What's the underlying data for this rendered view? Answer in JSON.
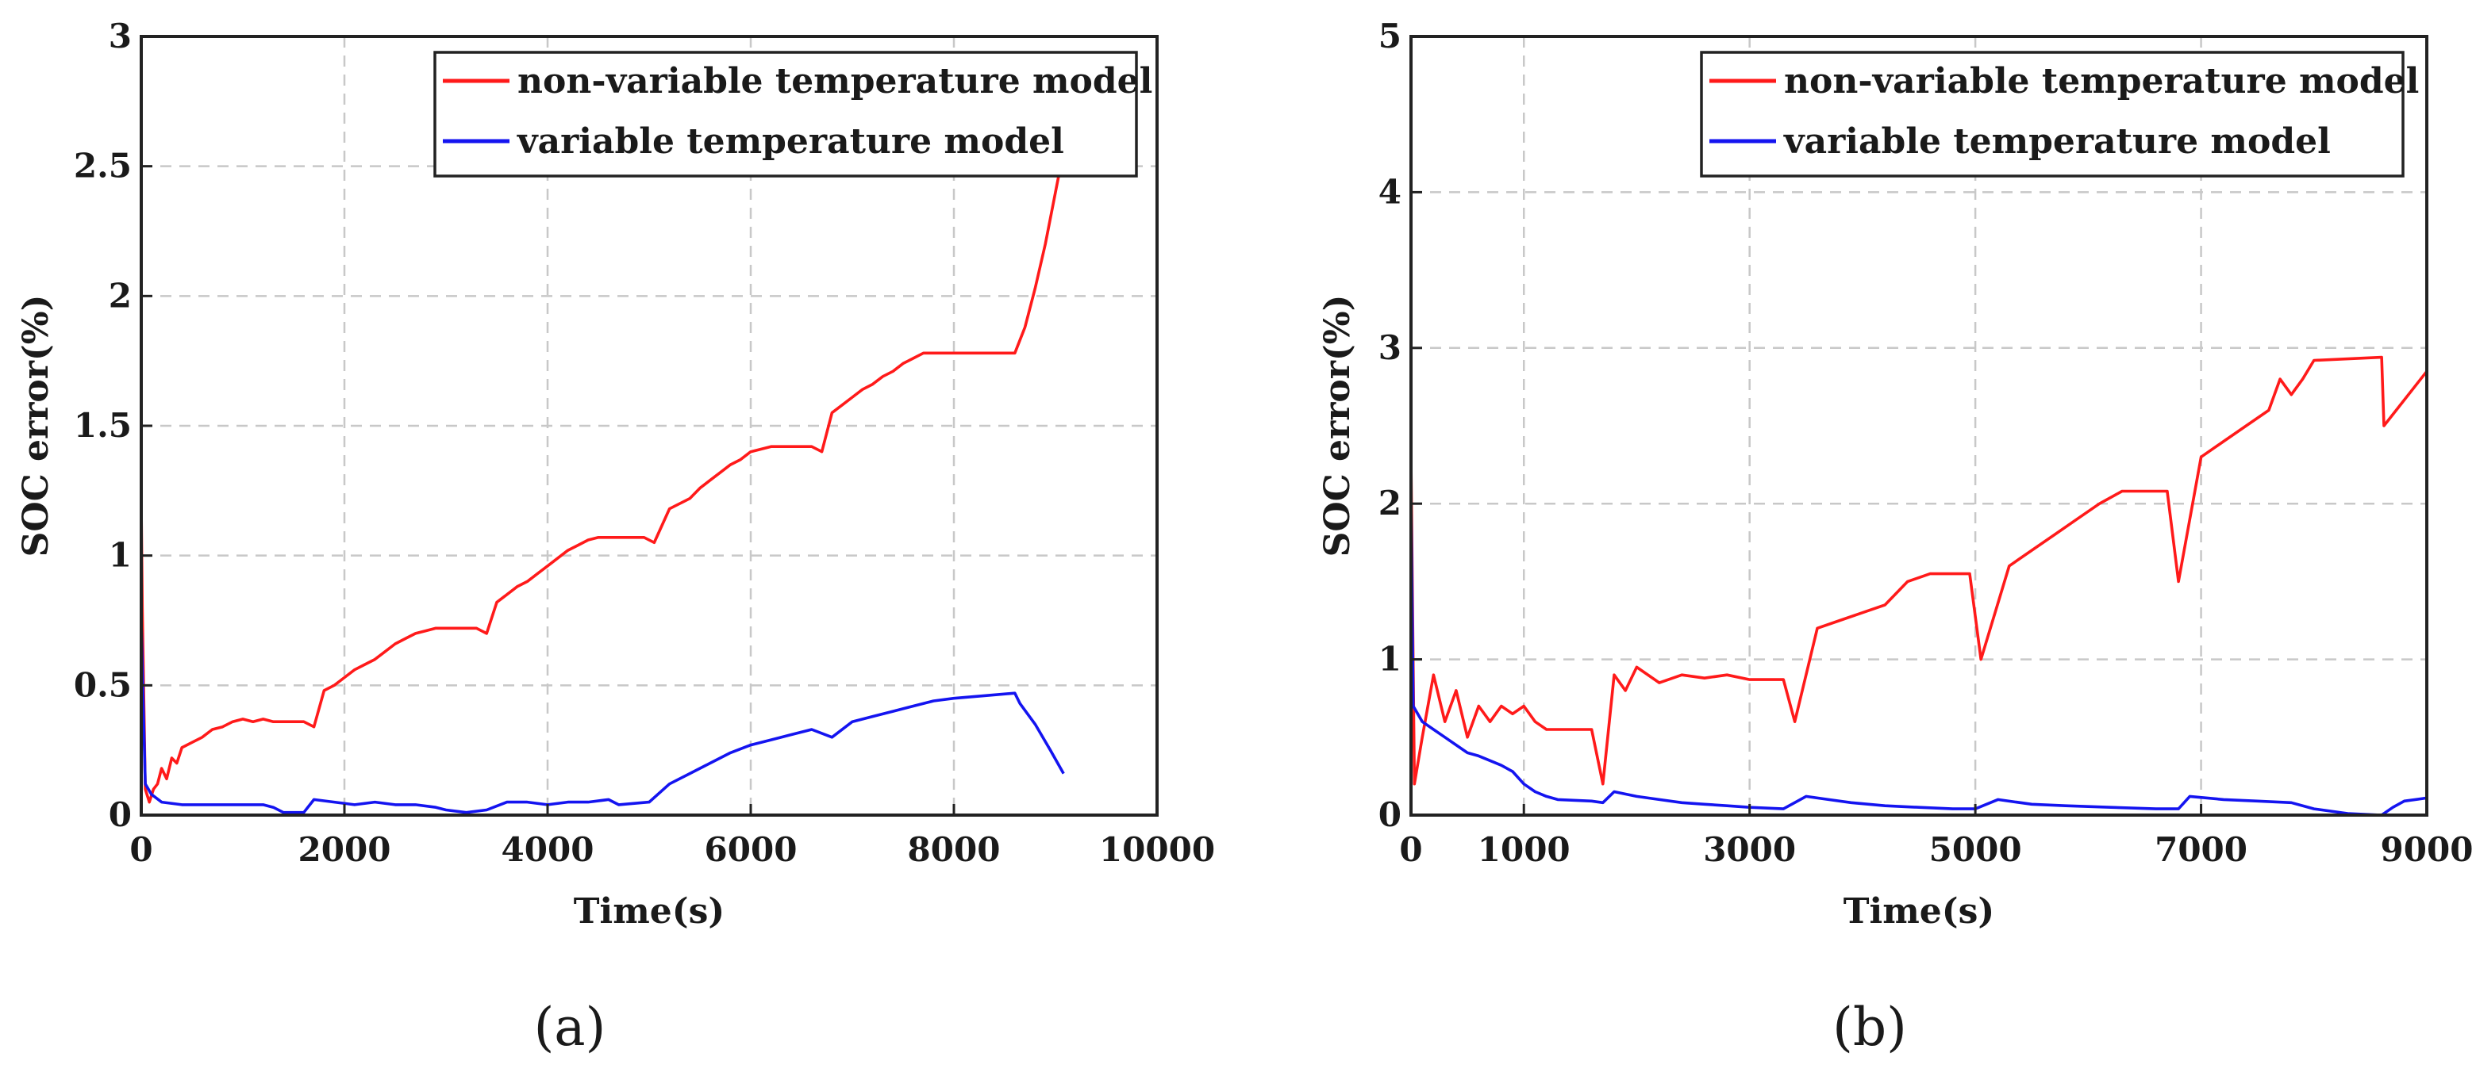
{
  "figure": {
    "panel_labels": [
      "(a)",
      "(b)"
    ]
  },
  "chart_data": [
    {
      "panel": "(a)",
      "type": "line",
      "title": "",
      "xlabel": "Time(s)",
      "ylabel": "SOC error(%)",
      "xlim": [
        0,
        10000
      ],
      "ylim": [
        0,
        3
      ],
      "xticks": [
        0,
        2000,
        4000,
        6000,
        8000,
        10000
      ],
      "yticks": [
        0,
        0.5,
        1,
        1.5,
        2,
        2.5,
        3
      ],
      "ytick_labels": [
        "0",
        "0.5",
        "1",
        "1.5",
        "2",
        "2.5",
        "3"
      ],
      "grid": true,
      "legend_position": "top-right",
      "series": [
        {
          "name": "non-variable temperature model",
          "color": "#ff1a1a",
          "points": [
            [
              0,
              1.2
            ],
            [
              10,
              0.8
            ],
            [
              40,
              0.1
            ],
            [
              80,
              0.05
            ],
            [
              120,
              0.1
            ],
            [
              160,
              0.12
            ],
            [
              200,
              0.18
            ],
            [
              250,
              0.14
            ],
            [
              300,
              0.22
            ],
            [
              350,
              0.2
            ],
            [
              400,
              0.26
            ],
            [
              500,
              0.28
            ],
            [
              600,
              0.3
            ],
            [
              700,
              0.33
            ],
            [
              800,
              0.34
            ],
            [
              900,
              0.36
            ],
            [
              1000,
              0.37
            ],
            [
              1100,
              0.36
            ],
            [
              1200,
              0.37
            ],
            [
              1300,
              0.36
            ],
            [
              1400,
              0.36
            ],
            [
              1600,
              0.36
            ],
            [
              1700,
              0.34
            ],
            [
              1800,
              0.48
            ],
            [
              1900,
              0.5
            ],
            [
              2000,
              0.53
            ],
            [
              2100,
              0.56
            ],
            [
              2200,
              0.58
            ],
            [
              2300,
              0.6
            ],
            [
              2400,
              0.63
            ],
            [
              2500,
              0.66
            ],
            [
              2600,
              0.68
            ],
            [
              2700,
              0.7
            ],
            [
              2800,
              0.71
            ],
            [
              2900,
              0.72
            ],
            [
              3000,
              0.72
            ],
            [
              3300,
              0.72
            ],
            [
              3400,
              0.7
            ],
            [
              3500,
              0.82
            ],
            [
              3600,
              0.85
            ],
            [
              3700,
              0.88
            ],
            [
              3800,
              0.9
            ],
            [
              3900,
              0.93
            ],
            [
              4000,
              0.96
            ],
            [
              4100,
              0.99
            ],
            [
              4200,
              1.02
            ],
            [
              4300,
              1.04
            ],
            [
              4400,
              1.06
            ],
            [
              4500,
              1.07
            ],
            [
              4600,
              1.07
            ],
            [
              4950,
              1.07
            ],
            [
              5050,
              1.05
            ],
            [
              5200,
              1.18
            ],
            [
              5300,
              1.2
            ],
            [
              5400,
              1.22
            ],
            [
              5500,
              1.26
            ],
            [
              5600,
              1.29
            ],
            [
              5700,
              1.32
            ],
            [
              5800,
              1.35
            ],
            [
              5900,
              1.37
            ],
            [
              6000,
              1.4
            ],
            [
              6100,
              1.41
            ],
            [
              6200,
              1.42
            ],
            [
              6300,
              1.42
            ],
            [
              6600,
              1.42
            ],
            [
              6700,
              1.4
            ],
            [
              6800,
              1.55
            ],
            [
              6900,
              1.58
            ],
            [
              7000,
              1.61
            ],
            [
              7100,
              1.64
            ],
            [
              7200,
              1.66
            ],
            [
              7300,
              1.69
            ],
            [
              7400,
              1.71
            ],
            [
              7500,
              1.74
            ],
            [
              7600,
              1.76
            ],
            [
              7700,
              1.78
            ],
            [
              7800,
              1.78
            ],
            [
              7900,
              1.78
            ],
            [
              8000,
              1.78
            ],
            [
              8300,
              1.78
            ],
            [
              8600,
              1.78
            ],
            [
              8700,
              1.88
            ],
            [
              8800,
              2.03
            ],
            [
              8900,
              2.2
            ],
            [
              9000,
              2.4
            ],
            [
              9050,
              2.5
            ]
          ]
        },
        {
          "name": "variable temperature model",
          "color": "#1414f0",
          "points": [
            [
              0,
              0.75
            ],
            [
              15,
              0.5
            ],
            [
              40,
              0.12
            ],
            [
              100,
              0.08
            ],
            [
              200,
              0.05
            ],
            [
              400,
              0.04
            ],
            [
              600,
              0.04
            ],
            [
              800,
              0.04
            ],
            [
              1000,
              0.04
            ],
            [
              1200,
              0.04
            ],
            [
              1300,
              0.03
            ],
            [
              1400,
              0.01
            ],
            [
              1600,
              0.01
            ],
            [
              1700,
              0.06
            ],
            [
              1900,
              0.05
            ],
            [
              2100,
              0.04
            ],
            [
              2300,
              0.05
            ],
            [
              2500,
              0.04
            ],
            [
              2700,
              0.04
            ],
            [
              2900,
              0.03
            ],
            [
              3000,
              0.02
            ],
            [
              3200,
              0.01
            ],
            [
              3400,
              0.02
            ],
            [
              3600,
              0.05
            ],
            [
              3800,
              0.05
            ],
            [
              4000,
              0.04
            ],
            [
              4200,
              0.05
            ],
            [
              4400,
              0.05
            ],
            [
              4600,
              0.06
            ],
            [
              4700,
              0.04
            ],
            [
              5000,
              0.05
            ],
            [
              5200,
              0.12
            ],
            [
              5400,
              0.16
            ],
            [
              5600,
              0.2
            ],
            [
              5800,
              0.24
            ],
            [
              6000,
              0.27
            ],
            [
              6200,
              0.29
            ],
            [
              6400,
              0.31
            ],
            [
              6600,
              0.33
            ],
            [
              6800,
              0.3
            ],
            [
              7000,
              0.36
            ],
            [
              7200,
              0.38
            ],
            [
              7400,
              0.4
            ],
            [
              7600,
              0.42
            ],
            [
              7800,
              0.44
            ],
            [
              8000,
              0.45
            ],
            [
              8300,
              0.46
            ],
            [
              8600,
              0.47
            ],
            [
              8650,
              0.43
            ],
            [
              8800,
              0.35
            ],
            [
              8950,
              0.25
            ],
            [
              9080,
              0.16
            ]
          ]
        }
      ]
    },
    {
      "panel": "(b)",
      "type": "line",
      "title": "",
      "xlabel": "Time(s)",
      "ylabel": "SOC error(%)",
      "xlim": [
        0,
        9000
      ],
      "ylim": [
        0,
        5
      ],
      "xticks": [
        0,
        1000,
        3000,
        5000,
        7000,
        9000
      ],
      "yticks": [
        0,
        1,
        2,
        3,
        4,
        5
      ],
      "ytick_labels": [
        "0",
        "1",
        "2",
        "3",
        "4",
        "5"
      ],
      "grid": true,
      "legend_position": "top-right",
      "series": [
        {
          "name": "non-variable temperature model",
          "color": "#ff1a1a",
          "points": [
            [
              0,
              2.3
            ],
            [
              30,
              0.2
            ],
            [
              100,
              0.5
            ],
            [
              200,
              0.9
            ],
            [
              300,
              0.6
            ],
            [
              400,
              0.8
            ],
            [
              500,
              0.5
            ],
            [
              600,
              0.7
            ],
            [
              700,
              0.6
            ],
            [
              800,
              0.7
            ],
            [
              900,
              0.65
            ],
            [
              1000,
              0.7
            ],
            [
              1100,
              0.6
            ],
            [
              1200,
              0.55
            ],
            [
              1300,
              0.55
            ],
            [
              1600,
              0.55
            ],
            [
              1700,
              0.2
            ],
            [
              1800,
              0.9
            ],
            [
              1900,
              0.8
            ],
            [
              2000,
              0.95
            ],
            [
              2200,
              0.85
            ],
            [
              2400,
              0.9
            ],
            [
              2600,
              0.88
            ],
            [
              2800,
              0.9
            ],
            [
              3000,
              0.87
            ],
            [
              3300,
              0.87
            ],
            [
              3400,
              0.6
            ],
            [
              3600,
              1.2
            ],
            [
              3800,
              1.25
            ],
            [
              4000,
              1.3
            ],
            [
              4200,
              1.35
            ],
            [
              4400,
              1.5
            ],
            [
              4600,
              1.55
            ],
            [
              4950,
              1.55
            ],
            [
              5050,
              1.0
            ],
            [
              5300,
              1.6
            ],
            [
              5500,
              1.7
            ],
            [
              5700,
              1.8
            ],
            [
              5900,
              1.9
            ],
            [
              6100,
              2.0
            ],
            [
              6300,
              2.08
            ],
            [
              6700,
              2.08
            ],
            [
              6800,
              1.5
            ],
            [
              7000,
              2.3
            ],
            [
              7200,
              2.4
            ],
            [
              7400,
              2.5
            ],
            [
              7600,
              2.6
            ],
            [
              7700,
              2.8
            ],
            [
              7800,
              2.7
            ],
            [
              7900,
              2.8
            ],
            [
              8000,
              2.92
            ],
            [
              8600,
              2.94
            ],
            [
              8620,
              2.5
            ],
            [
              9000,
              2.85
            ]
          ]
        },
        {
          "name": "variable temperature model",
          "color": "#1414f0",
          "points": [
            [
              0,
              2.05
            ],
            [
              20,
              0.7
            ],
            [
              100,
              0.6
            ],
            [
              200,
              0.55
            ],
            [
              300,
              0.5
            ],
            [
              400,
              0.45
            ],
            [
              500,
              0.4
            ],
            [
              600,
              0.38
            ],
            [
              700,
              0.35
            ],
            [
              800,
              0.32
            ],
            [
              900,
              0.28
            ],
            [
              1000,
              0.2
            ],
            [
              1100,
              0.15
            ],
            [
              1200,
              0.12
            ],
            [
              1300,
              0.1
            ],
            [
              1600,
              0.09
            ],
            [
              1700,
              0.08
            ],
            [
              1800,
              0.15
            ],
            [
              2000,
              0.12
            ],
            [
              2200,
              0.1
            ],
            [
              2400,
              0.08
            ],
            [
              2600,
              0.07
            ],
            [
              2800,
              0.06
            ],
            [
              3000,
              0.05
            ],
            [
              3300,
              0.04
            ],
            [
              3500,
              0.12
            ],
            [
              3700,
              0.1
            ],
            [
              3900,
              0.08
            ],
            [
              4200,
              0.06
            ],
            [
              4500,
              0.05
            ],
            [
              4800,
              0.04
            ],
            [
              5000,
              0.04
            ],
            [
              5200,
              0.1
            ],
            [
              5500,
              0.07
            ],
            [
              5800,
              0.06
            ],
            [
              6200,
              0.05
            ],
            [
              6600,
              0.04
            ],
            [
              6800,
              0.04
            ],
            [
              6900,
              0.12
            ],
            [
              7200,
              0.1
            ],
            [
              7500,
              0.09
            ],
            [
              7800,
              0.08
            ],
            [
              8000,
              0.04
            ],
            [
              8300,
              0.01
            ],
            [
              8600,
              0.0
            ],
            [
              8700,
              0.05
            ],
            [
              8800,
              0.09
            ],
            [
              9000,
              0.11
            ]
          ]
        }
      ]
    }
  ]
}
